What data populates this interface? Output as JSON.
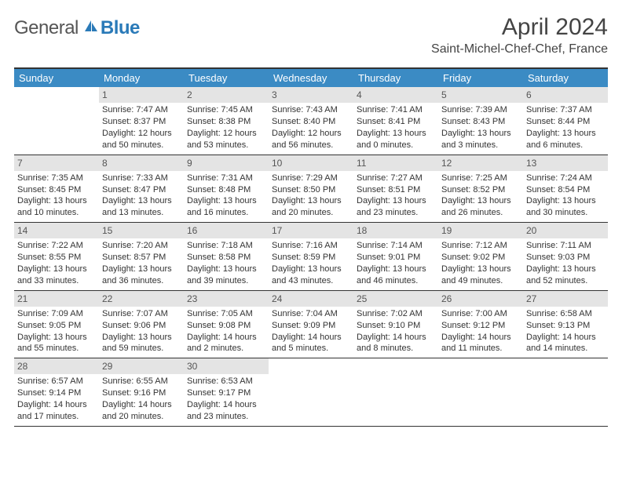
{
  "logo": {
    "part1": "General",
    "part2": "Blue"
  },
  "title": "April 2024",
  "location": "Saint-Michel-Chef-Chef, France",
  "colors": {
    "header_bar": "#3b8bc4",
    "daynum_bg": "#e4e4e4",
    "border": "#333333",
    "text": "#333333",
    "logo_gray": "#555555",
    "logo_blue": "#2a7ab8"
  },
  "weekdays": [
    "Sunday",
    "Monday",
    "Tuesday",
    "Wednesday",
    "Thursday",
    "Friday",
    "Saturday"
  ],
  "weeks": [
    [
      null,
      {
        "n": "1",
        "sr": "7:47 AM",
        "ss": "8:37 PM",
        "dl": "12 hours and 50 minutes."
      },
      {
        "n": "2",
        "sr": "7:45 AM",
        "ss": "8:38 PM",
        "dl": "12 hours and 53 minutes."
      },
      {
        "n": "3",
        "sr": "7:43 AM",
        "ss": "8:40 PM",
        "dl": "12 hours and 56 minutes."
      },
      {
        "n": "4",
        "sr": "7:41 AM",
        "ss": "8:41 PM",
        "dl": "13 hours and 0 minutes."
      },
      {
        "n": "5",
        "sr": "7:39 AM",
        "ss": "8:43 PM",
        "dl": "13 hours and 3 minutes."
      },
      {
        "n": "6",
        "sr": "7:37 AM",
        "ss": "8:44 PM",
        "dl": "13 hours and 6 minutes."
      }
    ],
    [
      {
        "n": "7",
        "sr": "7:35 AM",
        "ss": "8:45 PM",
        "dl": "13 hours and 10 minutes."
      },
      {
        "n": "8",
        "sr": "7:33 AM",
        "ss": "8:47 PM",
        "dl": "13 hours and 13 minutes."
      },
      {
        "n": "9",
        "sr": "7:31 AM",
        "ss": "8:48 PM",
        "dl": "13 hours and 16 minutes."
      },
      {
        "n": "10",
        "sr": "7:29 AM",
        "ss": "8:50 PM",
        "dl": "13 hours and 20 minutes."
      },
      {
        "n": "11",
        "sr": "7:27 AM",
        "ss": "8:51 PM",
        "dl": "13 hours and 23 minutes."
      },
      {
        "n": "12",
        "sr": "7:25 AM",
        "ss": "8:52 PM",
        "dl": "13 hours and 26 minutes."
      },
      {
        "n": "13",
        "sr": "7:24 AM",
        "ss": "8:54 PM",
        "dl": "13 hours and 30 minutes."
      }
    ],
    [
      {
        "n": "14",
        "sr": "7:22 AM",
        "ss": "8:55 PM",
        "dl": "13 hours and 33 minutes."
      },
      {
        "n": "15",
        "sr": "7:20 AM",
        "ss": "8:57 PM",
        "dl": "13 hours and 36 minutes."
      },
      {
        "n": "16",
        "sr": "7:18 AM",
        "ss": "8:58 PM",
        "dl": "13 hours and 39 minutes."
      },
      {
        "n": "17",
        "sr": "7:16 AM",
        "ss": "8:59 PM",
        "dl": "13 hours and 43 minutes."
      },
      {
        "n": "18",
        "sr": "7:14 AM",
        "ss": "9:01 PM",
        "dl": "13 hours and 46 minutes."
      },
      {
        "n": "19",
        "sr": "7:12 AM",
        "ss": "9:02 PM",
        "dl": "13 hours and 49 minutes."
      },
      {
        "n": "20",
        "sr": "7:11 AM",
        "ss": "9:03 PM",
        "dl": "13 hours and 52 minutes."
      }
    ],
    [
      {
        "n": "21",
        "sr": "7:09 AM",
        "ss": "9:05 PM",
        "dl": "13 hours and 55 minutes."
      },
      {
        "n": "22",
        "sr": "7:07 AM",
        "ss": "9:06 PM",
        "dl": "13 hours and 59 minutes."
      },
      {
        "n": "23",
        "sr": "7:05 AM",
        "ss": "9:08 PM",
        "dl": "14 hours and 2 minutes."
      },
      {
        "n": "24",
        "sr": "7:04 AM",
        "ss": "9:09 PM",
        "dl": "14 hours and 5 minutes."
      },
      {
        "n": "25",
        "sr": "7:02 AM",
        "ss": "9:10 PM",
        "dl": "14 hours and 8 minutes."
      },
      {
        "n": "26",
        "sr": "7:00 AM",
        "ss": "9:12 PM",
        "dl": "14 hours and 11 minutes."
      },
      {
        "n": "27",
        "sr": "6:58 AM",
        "ss": "9:13 PM",
        "dl": "14 hours and 14 minutes."
      }
    ],
    [
      {
        "n": "28",
        "sr": "6:57 AM",
        "ss": "9:14 PM",
        "dl": "14 hours and 17 minutes."
      },
      {
        "n": "29",
        "sr": "6:55 AM",
        "ss": "9:16 PM",
        "dl": "14 hours and 20 minutes."
      },
      {
        "n": "30",
        "sr": "6:53 AM",
        "ss": "9:17 PM",
        "dl": "14 hours and 23 minutes."
      },
      null,
      null,
      null,
      null
    ]
  ],
  "labels": {
    "sunrise": "Sunrise:",
    "sunset": "Sunset:",
    "daylight": "Daylight:"
  }
}
